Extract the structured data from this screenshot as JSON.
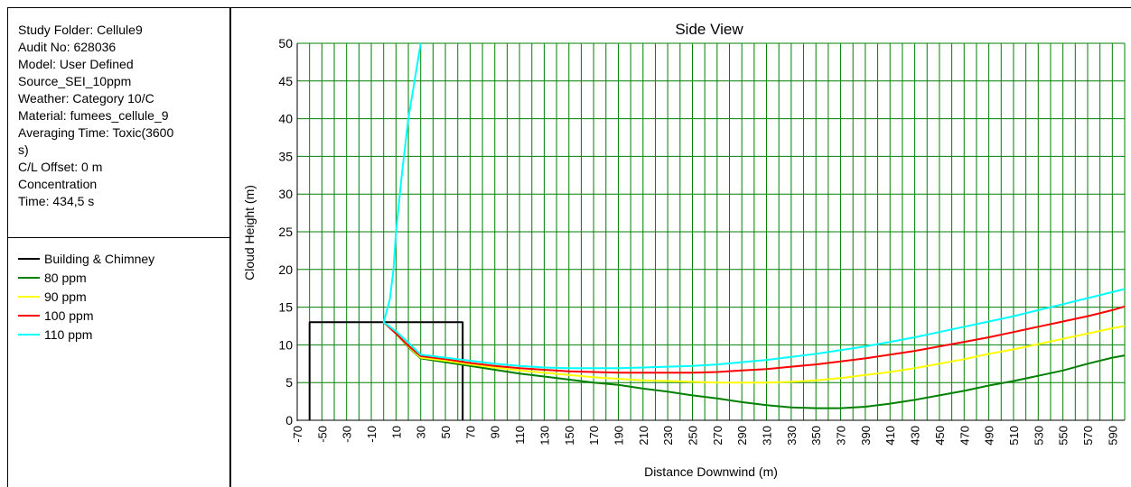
{
  "info": {
    "lines": [
      "Study Folder: Cellule9",
      "Audit No: 628036",
      "Model: User Defined",
      "Source_SEI_10ppm",
      "Weather: Category 10/C",
      "Material: fumees_cellule_9",
      "Averaging Time: Toxic(3600",
      "s)",
      "C/L Offset: 0 m",
      "Concentration",
      "Time: 434,5 s"
    ]
  },
  "legend": [
    {
      "label": "Building & Chimney",
      "color": "#000000"
    },
    {
      "label": "80 ppm",
      "color": "#008000"
    },
    {
      "label": "90 ppm",
      "color": "#ffff00"
    },
    {
      "label": "100 ppm",
      "color": "#ff0000"
    },
    {
      "label": "110 ppm",
      "color": "#00ffff"
    }
  ],
  "chart_data": {
    "type": "line",
    "title": "Side View",
    "xlabel": "Distance Downwind (m)",
    "ylabel": "Cloud Height (m)",
    "xlim": [
      -70,
      600
    ],
    "ylim": [
      0,
      50
    ],
    "grid": true,
    "grid_color": "#008000",
    "x_ticks": [
      "-70",
      "-50",
      "-30",
      "-10",
      "10",
      "30",
      "50",
      "70",
      "90",
      "110",
      "130",
      "150",
      "170",
      "190",
      "210",
      "230",
      "250",
      "270",
      "290",
      "310",
      "330",
      "350",
      "370",
      "390",
      "410",
      "430",
      "450",
      "470",
      "490",
      "510",
      "530",
      "550",
      "570",
      "590"
    ],
    "y_ticks": [
      "0",
      "5",
      "10",
      "15",
      "20",
      "25",
      "30",
      "35",
      "40",
      "45",
      "50"
    ],
    "series": [
      {
        "name": "Building & Chimney",
        "color": "#000000",
        "points": [
          [
            -60,
            0
          ],
          [
            -60,
            13
          ],
          [
            64,
            13
          ],
          [
            64,
            0
          ]
        ]
      },
      {
        "name": "80 ppm",
        "color": "#008000",
        "points": [
          [
            0,
            13
          ],
          [
            10,
            11.5
          ],
          [
            20,
            9.7
          ],
          [
            30,
            8.2
          ],
          [
            50,
            7.7
          ],
          [
            70,
            7.2
          ],
          [
            90,
            6.7
          ],
          [
            110,
            6.2
          ],
          [
            130,
            5.8
          ],
          [
            150,
            5.4
          ],
          [
            170,
            5.0
          ],
          [
            190,
            4.7
          ],
          [
            210,
            4.2
          ],
          [
            230,
            3.8
          ],
          [
            250,
            3.3
          ],
          [
            270,
            2.9
          ],
          [
            290,
            2.4
          ],
          [
            310,
            2.0
          ],
          [
            330,
            1.7
          ],
          [
            350,
            1.6
          ],
          [
            370,
            1.6
          ],
          [
            390,
            1.8
          ],
          [
            410,
            2.2
          ],
          [
            430,
            2.7
          ],
          [
            450,
            3.3
          ],
          [
            470,
            3.9
          ],
          [
            490,
            4.6
          ],
          [
            510,
            5.2
          ],
          [
            530,
            5.9
          ],
          [
            550,
            6.6
          ],
          [
            570,
            7.5
          ],
          [
            590,
            8.3
          ],
          [
            600,
            8.6
          ]
        ]
      },
      {
        "name": "90 ppm",
        "color": "#ffff00",
        "points": [
          [
            0,
            13
          ],
          [
            10,
            11.5
          ],
          [
            20,
            9.8
          ],
          [
            30,
            8.3
          ],
          [
            50,
            7.9
          ],
          [
            70,
            7.4
          ],
          [
            90,
            7.0
          ],
          [
            110,
            6.6
          ],
          [
            130,
            6.3
          ],
          [
            150,
            6.0
          ],
          [
            170,
            5.7
          ],
          [
            190,
            5.5
          ],
          [
            210,
            5.3
          ],
          [
            230,
            5.2
          ],
          [
            250,
            5.1
          ],
          [
            270,
            5.0
          ],
          [
            290,
            5.0
          ],
          [
            310,
            5.0
          ],
          [
            330,
            5.1
          ],
          [
            350,
            5.3
          ],
          [
            370,
            5.6
          ],
          [
            390,
            6.0
          ],
          [
            410,
            6.4
          ],
          [
            430,
            6.9
          ],
          [
            450,
            7.5
          ],
          [
            470,
            8.1
          ],
          [
            490,
            8.8
          ],
          [
            510,
            9.4
          ],
          [
            530,
            10.1
          ],
          [
            550,
            10.8
          ],
          [
            570,
            11.5
          ],
          [
            590,
            12.2
          ],
          [
            600,
            12.5
          ]
        ]
      },
      {
        "name": "100 ppm",
        "color": "#ff0000",
        "points": [
          [
            0,
            13
          ],
          [
            10,
            11.5
          ],
          [
            20,
            9.9
          ],
          [
            30,
            8.5
          ],
          [
            50,
            8.1
          ],
          [
            70,
            7.6
          ],
          [
            90,
            7.2
          ],
          [
            110,
            6.9
          ],
          [
            130,
            6.7
          ],
          [
            150,
            6.5
          ],
          [
            170,
            6.4
          ],
          [
            190,
            6.3
          ],
          [
            210,
            6.3
          ],
          [
            230,
            6.3
          ],
          [
            250,
            6.3
          ],
          [
            270,
            6.4
          ],
          [
            290,
            6.6
          ],
          [
            310,
            6.8
          ],
          [
            330,
            7.1
          ],
          [
            350,
            7.4
          ],
          [
            370,
            7.8
          ],
          [
            390,
            8.2
          ],
          [
            410,
            8.7
          ],
          [
            430,
            9.2
          ],
          [
            450,
            9.8
          ],
          [
            470,
            10.4
          ],
          [
            490,
            11.0
          ],
          [
            510,
            11.7
          ],
          [
            530,
            12.4
          ],
          [
            550,
            13.1
          ],
          [
            570,
            13.8
          ],
          [
            590,
            14.6
          ],
          [
            600,
            15.1
          ]
        ]
      },
      {
        "name": "110 ppm",
        "color": "#00ffff",
        "points": [
          [
            30,
            50
          ],
          [
            25,
            45
          ],
          [
            20,
            40
          ],
          [
            15,
            33
          ],
          [
            10,
            25
          ],
          [
            8,
            20
          ],
          [
            5,
            16
          ],
          [
            0,
            13
          ],
          [
            10,
            11.8
          ],
          [
            20,
            10.3
          ],
          [
            30,
            8.7
          ],
          [
            50,
            8.3
          ],
          [
            70,
            7.9
          ],
          [
            90,
            7.5
          ],
          [
            110,
            7.2
          ],
          [
            130,
            7.0
          ],
          [
            150,
            6.9
          ],
          [
            170,
            6.9
          ],
          [
            190,
            6.9
          ],
          [
            210,
            7.0
          ],
          [
            230,
            7.1
          ],
          [
            250,
            7.2
          ],
          [
            270,
            7.4
          ],
          [
            290,
            7.7
          ],
          [
            310,
            8.0
          ],
          [
            330,
            8.4
          ],
          [
            350,
            8.8
          ],
          [
            370,
            9.3
          ],
          [
            390,
            9.8
          ],
          [
            410,
            10.4
          ],
          [
            430,
            11.0
          ],
          [
            450,
            11.7
          ],
          [
            470,
            12.4
          ],
          [
            490,
            13.1
          ],
          [
            510,
            13.8
          ],
          [
            530,
            14.6
          ],
          [
            550,
            15.4
          ],
          [
            570,
            16.2
          ],
          [
            590,
            17.0
          ],
          [
            600,
            17.4
          ]
        ]
      }
    ]
  }
}
